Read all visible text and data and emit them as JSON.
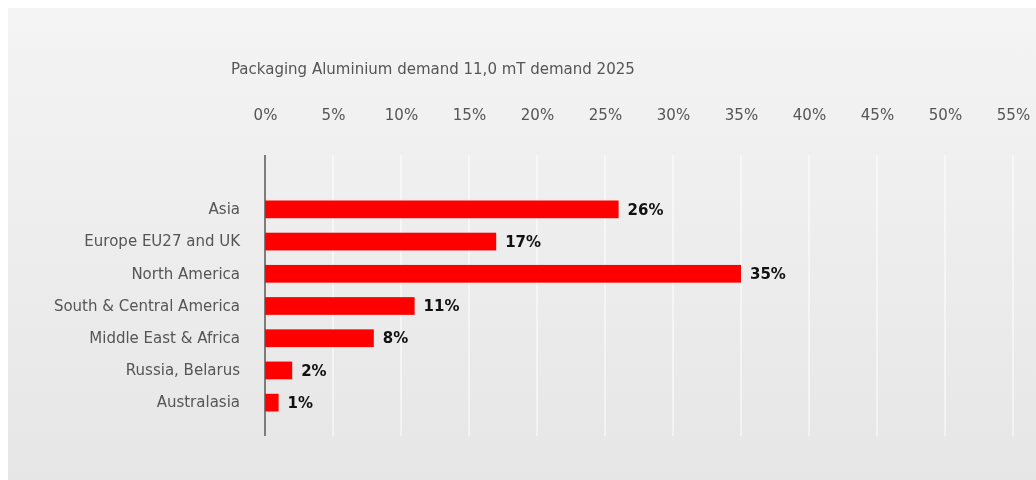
{
  "chart_data": {
    "type": "bar",
    "orientation": "horizontal",
    "title": "Packaging Aluminium demand 11,0 mT demand 2025",
    "categories": [
      "Asia",
      "Europe EU27 and UK",
      "North America",
      "South & Central America",
      "Middle East & Africa",
      "Russia, Belarus",
      "Australasia"
    ],
    "values": [
      26,
      17,
      35,
      11,
      8,
      2,
      1
    ],
    "value_labels": [
      "26%",
      "17%",
      "35%",
      "11%",
      "8%",
      "2%",
      "1%"
    ],
    "color": "#ff0000",
    "xlim": [
      0,
      55
    ],
    "xticks": [
      {
        "value": 0,
        "label": "0%"
      },
      {
        "value": 5,
        "label": "5%"
      },
      {
        "value": 10,
        "label": "10%"
      },
      {
        "value": 15,
        "label": "15%"
      },
      {
        "value": 20,
        "label": "20%"
      },
      {
        "value": 25,
        "label": "25%"
      },
      {
        "value": 30,
        "label": "30%"
      },
      {
        "value": 35,
        "label": "35%"
      },
      {
        "value": 40,
        "label": "40%"
      },
      {
        "value": 45,
        "label": "45%"
      },
      {
        "value": 50,
        "label": "50%"
      },
      {
        "value": 55,
        "label": "55%"
      }
    ],
    "grid": "x"
  }
}
